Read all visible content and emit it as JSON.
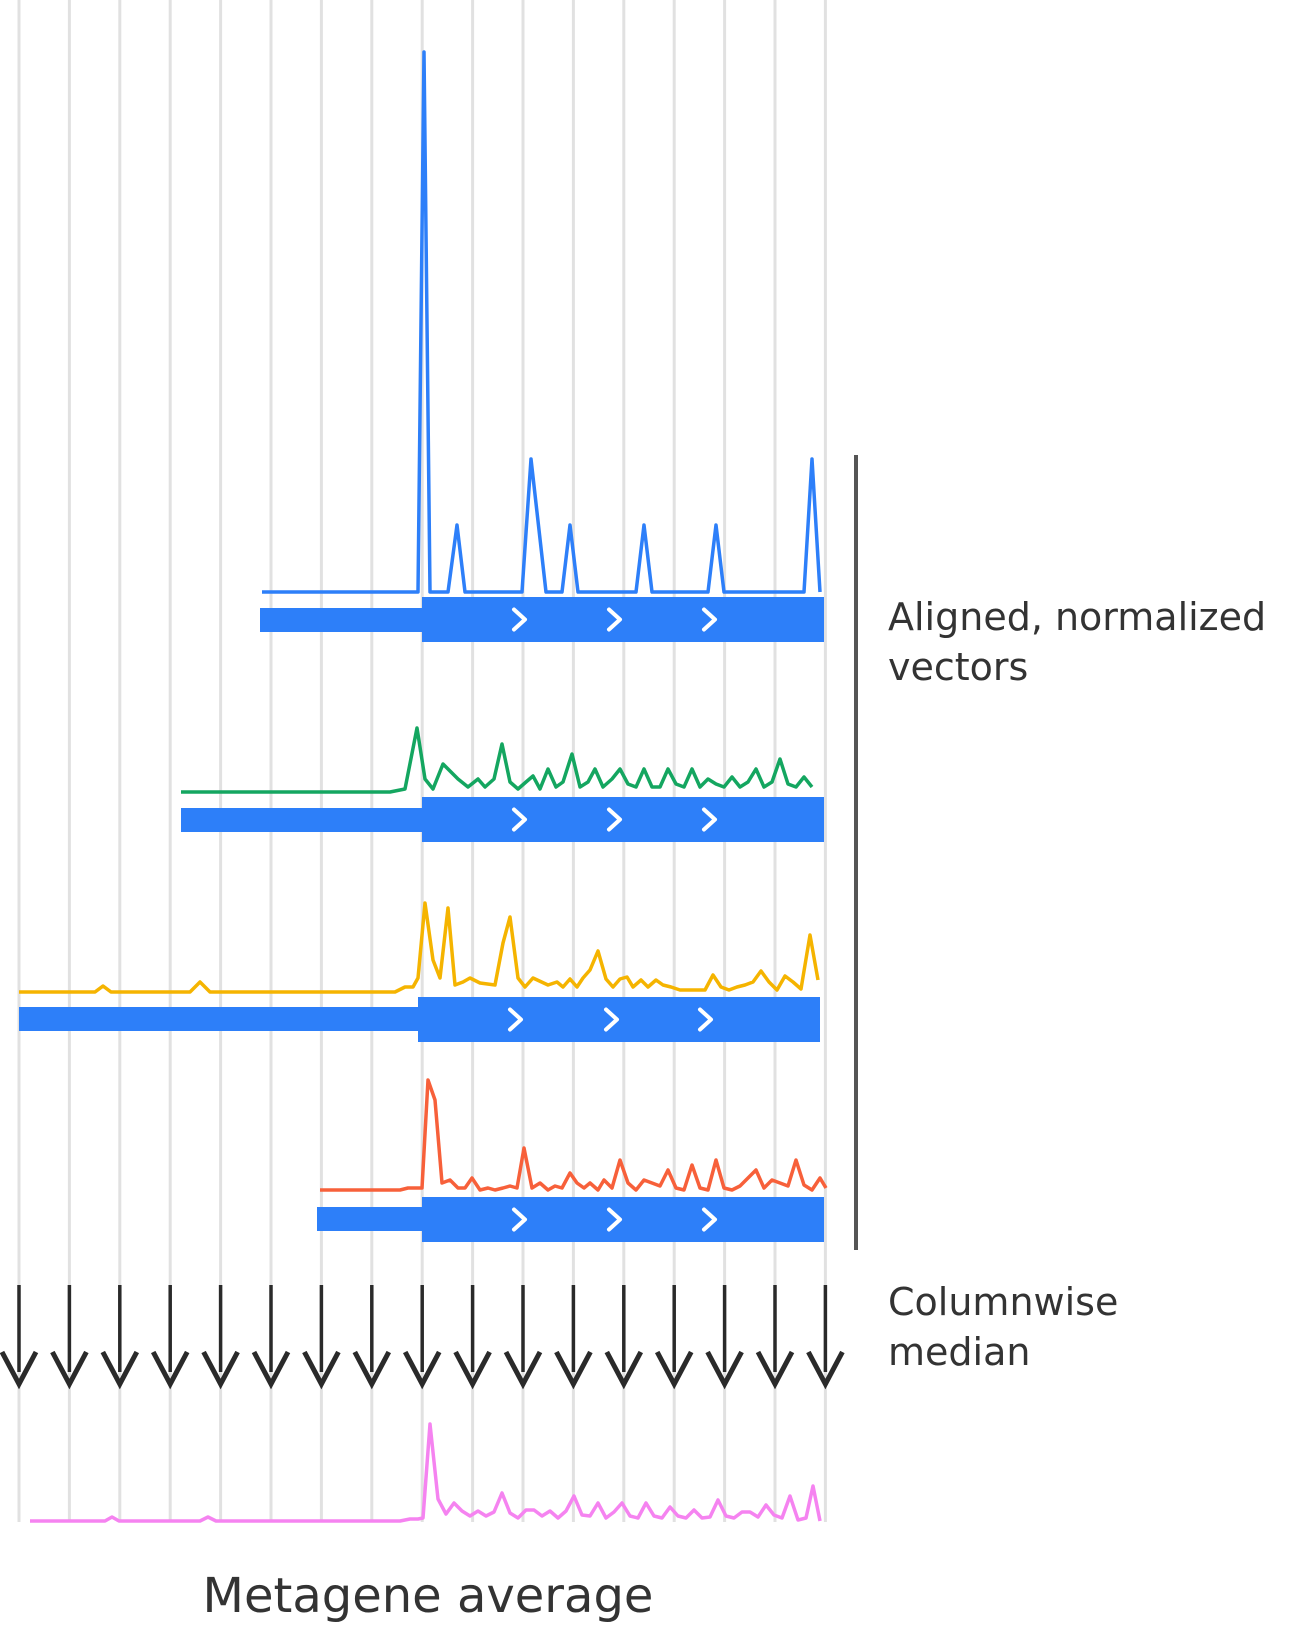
{
  "labels": {
    "aligned": [
      "Aligned, normalized",
      "vectors"
    ],
    "median": [
      "Columnwise",
      "median"
    ],
    "bottom": "Metagene average"
  },
  "colors": {
    "gene": "#2d7ff9",
    "grid": "#e1e1e1",
    "arrow": "#2a2a2a",
    "bracket": "#555555",
    "chevron": "#ffffff",
    "tracks": [
      "#2d7ff9",
      "#14a660",
      "#f5b400",
      "#f7603a"
    ],
    "median": "#f583f0"
  },
  "icons": {
    "direction": "chevron-right-icon",
    "arrow": "arrow-down-icon"
  },
  "chevron_count": 3,
  "column_count": 17
}
